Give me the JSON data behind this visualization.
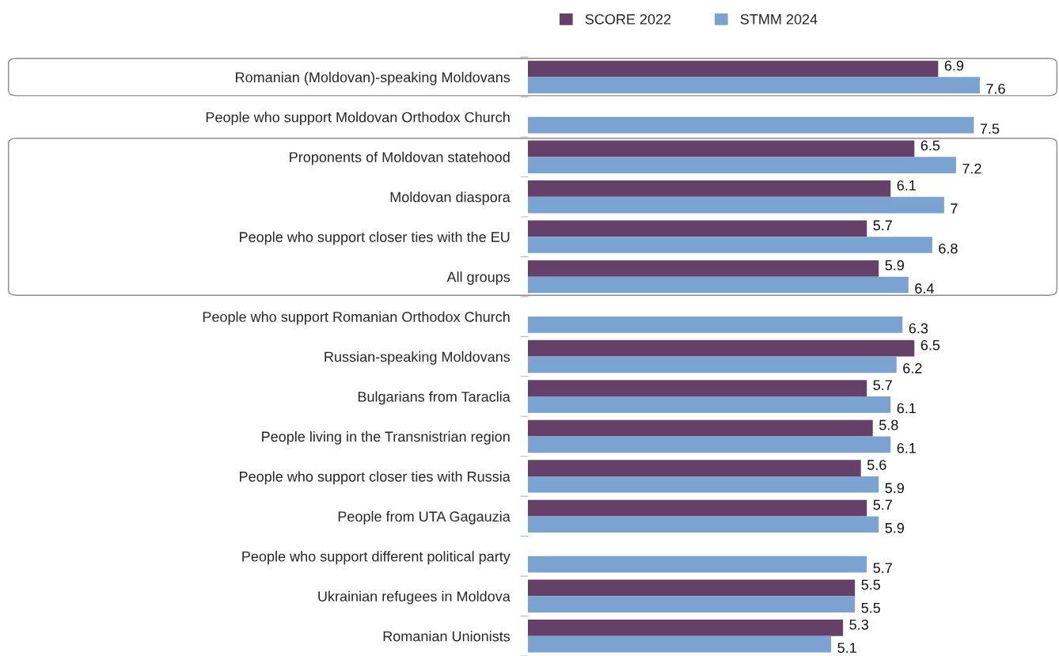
{
  "chart_data": {
    "type": "bar",
    "orientation": "horizontal",
    "data_labels": true,
    "legend": "top",
    "grid": false,
    "tick_labels": "y",
    "categories": [
      "Romanian (Moldovan)-speaking Moldovans",
      "People who support Moldovan Orthodox Church",
      "Proponents of Moldovan statehood",
      "Moldovan diaspora",
      "People who support closer ties with the EU",
      "All groups",
      "People who support Romanian Orthodox Church",
      "Russian-speaking Moldovans",
      "Bulgarians from Taraclia",
      "People living in the Transnistrian region",
      "People who support closer ties with Russia",
      "People from UTA Gagauzia",
      "People who support different political party",
      "Ukrainian refugees in Moldova",
      "Romanian Unionists"
    ],
    "series": [
      {
        "name": "SCORE 2022",
        "color": "#654068",
        "values": [
          6.9,
          null,
          6.5,
          6.1,
          5.7,
          5.9,
          null,
          6.5,
          5.7,
          5.8,
          5.6,
          5.7,
          null,
          5.5,
          5.3
        ]
      },
      {
        "name": "STMM 2024",
        "color": "#7aa3d2",
        "values": [
          7.6,
          7.5,
          7.2,
          7,
          6.8,
          6.4,
          6.3,
          6.2,
          6.1,
          6.1,
          5.9,
          5.9,
          5.7,
          5.5,
          5.1
        ]
      }
    ]
  }
}
